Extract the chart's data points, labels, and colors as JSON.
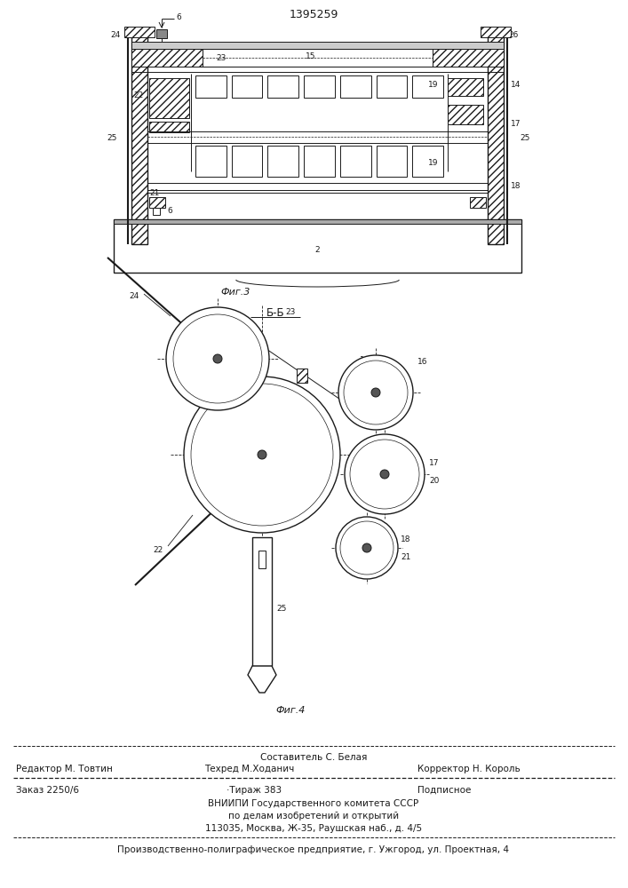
{
  "title": "1395259",
  "fig3_caption": "Фиг.3",
  "fig4_caption": "Фиг.4",
  "section_label": "Б-Б",
  "footer_editor": "Редактор М. Товтин",
  "footer_composer": "Составитель С. Белая",
  "footer_tech": "Техред М.Ходанич",
  "footer_corrector": "Корректор Н. Король",
  "footer_order": "Заказ 2250/6",
  "footer_tirazh": "·Тираж 383",
  "footer_podp": "Подписное",
  "footer_line4": "ВНИИПИ Государственного комитета СССР",
  "footer_line5": "по делам изобретений и открытий",
  "footer_line6": "113035, Москва, Ж-35, Раушская наб., д. 4/5",
  "footer_bottom": "Производственно-полиграфическое предприятие, г. Ужгород, ул. Проектная, 4",
  "bg_color": "#ffffff",
  "line_color": "#1a1a1a"
}
